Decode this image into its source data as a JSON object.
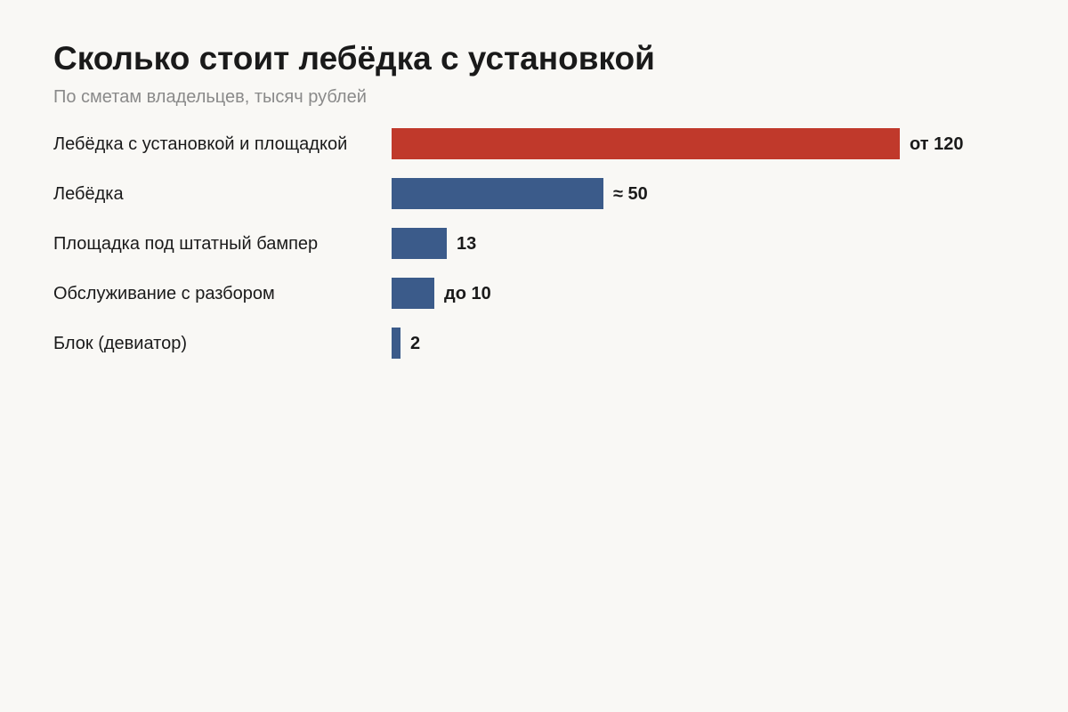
{
  "chart_data": {
    "type": "bar",
    "orientation": "horizontal",
    "title": "Сколько стоит лебёдка с установкой",
    "subtitle": "По сметам владельцев, тысяч рублей",
    "categories": [
      "Лебёдка с установкой и площадкой",
      "Лебёдка",
      "Площадка под штатный бампер",
      "Обслуживание с разбором",
      "Блок (девиатор)"
    ],
    "values": [
      120,
      50,
      13,
      10,
      2
    ],
    "value_labels": [
      "от 120",
      "≈ 50",
      "13",
      "до 10",
      "2"
    ],
    "xlim": [
      0,
      120
    ],
    "grid": false,
    "legend": "none",
    "colors": {
      "highlight": "#c0392b",
      "default": "#3b5b8a",
      "highlight_index": 0
    }
  }
}
